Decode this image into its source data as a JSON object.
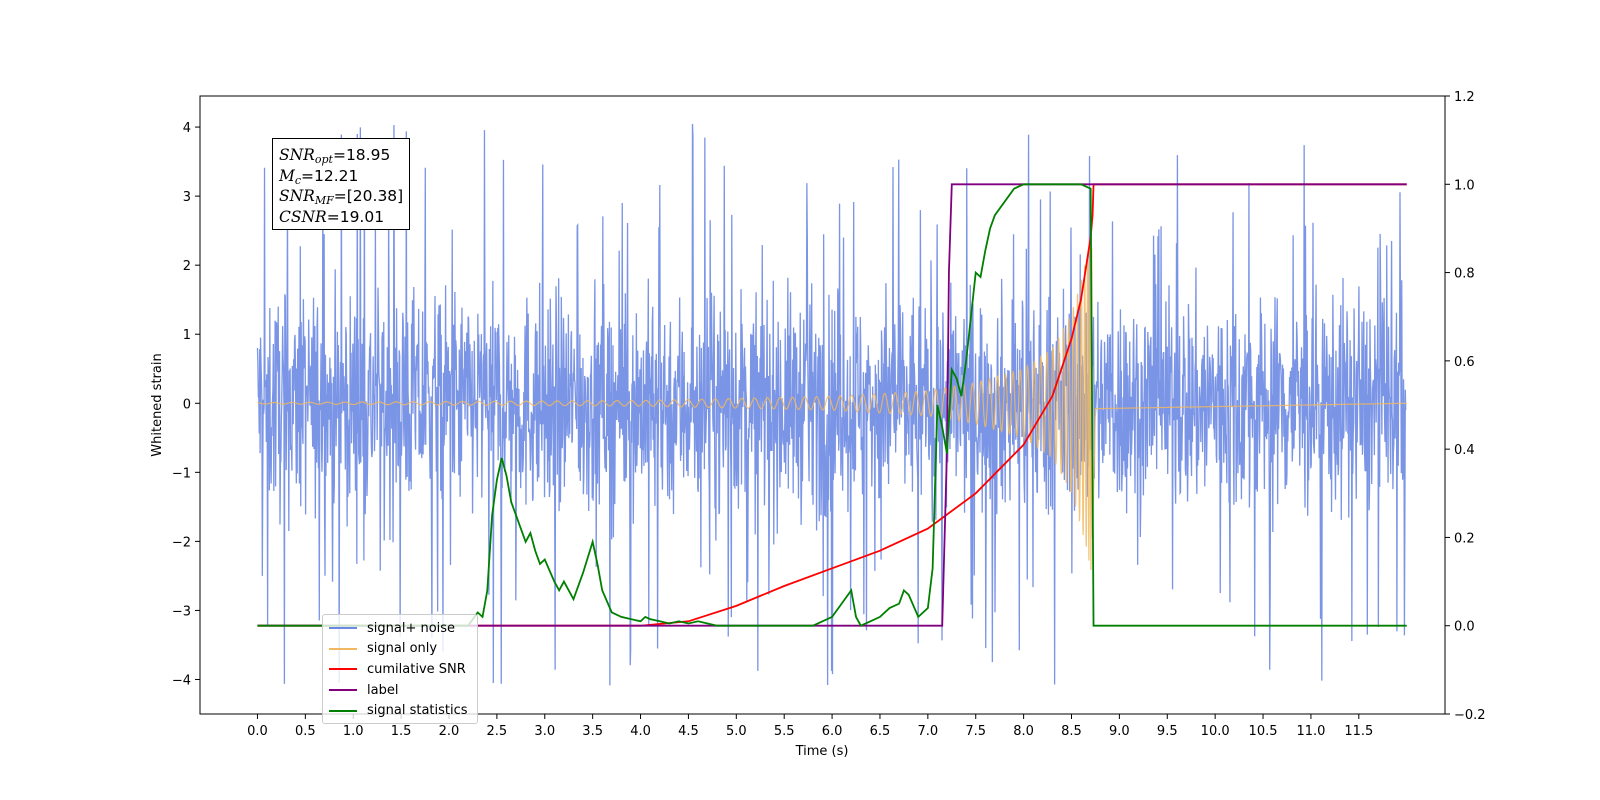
{
  "chart_data": {
    "type": "line",
    "xlabel": "Time (s)",
    "ylabel": "Whitened strain",
    "x_ticks": [
      "0.0",
      "0.5",
      "1.0",
      "1.5",
      "2.0",
      "2.5",
      "3.0",
      "3.5",
      "4.0",
      "4.5",
      "5.0",
      "5.5",
      "6.0",
      "6.5",
      "7.0",
      "7.5",
      "8.0",
      "8.5",
      "9.0",
      "9.5",
      "10.0",
      "10.5",
      "11.0",
      "11.5"
    ],
    "xlim": [
      -0.6,
      12.4
    ],
    "y_left_ticks": [
      "−4",
      "−3",
      "−2",
      "−1",
      "0",
      "1",
      "2",
      "3",
      "4"
    ],
    "ylim_left": [
      -4.5,
      4.45
    ],
    "y_right_ticks": [
      "−0.2",
      "0.0",
      "0.2",
      "0.4",
      "0.6",
      "0.8",
      "1.0",
      "1.2"
    ],
    "ylim_right": [
      -0.2,
      1.2
    ],
    "colors": {
      "noise": "#6b88e3",
      "signal": "#f0b860",
      "overlap": "#b89a7a",
      "snr": "#ff0000",
      "label": "#800080",
      "stat": "#008000"
    },
    "annotation": {
      "snr_opt_sym": "SNR",
      "snr_opt_sub": "opt",
      "snr_opt_val": "=18.95",
      "mc_sym": "M",
      "mc_sub": "c",
      "mc_val": "=12.21",
      "snr_mf_sym": "SNR",
      "snr_mf_sub": "MF",
      "snr_mf_val": "=[20.38]",
      "csnr_sym": "CSNR",
      "csnr_val": "=19.01"
    },
    "legend": [
      {
        "label": "signal+ noise",
        "color": "#6b88e3"
      },
      {
        "label": "signal only",
        "color": "#f0b860"
      },
      {
        "label": "cumilative SNR",
        "color": "#ff0000"
      },
      {
        "label": "label",
        "color": "#800080"
      },
      {
        "label": "signal statistics",
        "color": "#008000"
      }
    ],
    "series": [
      {
        "name": "signal+ noise",
        "axis": "left",
        "kind": "noise",
        "x_range": [
          0.0,
          11.99
        ],
        "noise_band": [
          -2.0,
          2.3
        ],
        "peak_range": [
          -4.1,
          4.05
        ]
      },
      {
        "name": "signal only",
        "axis": "left",
        "kind": "chirp",
        "x_range": [
          0.0,
          12.0
        ],
        "merger_time": 8.72,
        "envelope": [
          [
            0.0,
            0.01
          ],
          [
            4.0,
            0.04
          ],
          [
            6.0,
            0.1
          ],
          [
            7.0,
            0.18
          ],
          [
            7.5,
            0.3
          ],
          [
            8.0,
            0.5
          ],
          [
            8.3,
            0.8
          ],
          [
            8.5,
            1.3
          ],
          [
            8.6,
            1.8
          ],
          [
            8.68,
            2.3
          ],
          [
            8.72,
            2.5
          ],
          [
            8.75,
            0.1
          ],
          [
            12.0,
            0.0
          ]
        ]
      },
      {
        "name": "cumilative SNR",
        "axis": "right",
        "x": [
          0.0,
          4.0,
          4.5,
          5.0,
          5.5,
          6.0,
          6.5,
          7.0,
          7.5,
          8.0,
          8.3,
          8.5,
          8.6,
          8.7,
          8.72,
          8.73,
          12.0
        ],
        "y": [
          0.0,
          0.0,
          0.01,
          0.045,
          0.09,
          0.13,
          0.17,
          0.22,
          0.3,
          0.41,
          0.52,
          0.65,
          0.74,
          0.88,
          0.93,
          1.0,
          1.0
        ]
      },
      {
        "name": "label",
        "axis": "right",
        "x": [
          0.0,
          7.15,
          7.2,
          7.22,
          7.25,
          12.0
        ],
        "y": [
          0.0,
          0.0,
          0.4,
          0.8,
          1.0,
          1.0
        ]
      },
      {
        "name": "signal statistics",
        "axis": "right",
        "x": [
          0.0,
          2.2,
          2.3,
          2.35,
          2.4,
          2.45,
          2.5,
          2.55,
          2.6,
          2.65,
          2.7,
          2.8,
          2.85,
          2.9,
          2.95,
          3.0,
          3.1,
          3.15,
          3.2,
          3.3,
          3.4,
          3.5,
          3.55,
          3.6,
          3.7,
          3.8,
          3.9,
          4.0,
          4.05,
          4.1,
          4.2,
          4.3,
          4.4,
          4.5,
          4.6,
          4.7,
          4.8,
          4.9,
          5.8,
          5.9,
          6.0,
          6.1,
          6.2,
          6.25,
          6.3,
          6.4,
          6.5,
          6.6,
          6.7,
          6.75,
          6.8,
          6.9,
          7.0,
          7.05,
          7.1,
          7.15,
          7.2,
          7.25,
          7.3,
          7.35,
          7.4,
          7.5,
          7.55,
          7.6,
          7.65,
          7.7,
          7.8,
          7.9,
          8.0,
          8.4,
          8.6,
          8.7,
          8.73,
          12.0
        ],
        "y": [
          0.0,
          0.0,
          0.03,
          0.02,
          0.08,
          0.25,
          0.33,
          0.38,
          0.34,
          0.28,
          0.25,
          0.19,
          0.21,
          0.17,
          0.14,
          0.15,
          0.1,
          0.08,
          0.1,
          0.06,
          0.12,
          0.19,
          0.14,
          0.08,
          0.03,
          0.02,
          0.015,
          0.01,
          0.02,
          0.015,
          0.01,
          0.005,
          0.01,
          0.005,
          0.01,
          0.005,
          0.0,
          0.0,
          0.0,
          0.01,
          0.02,
          0.05,
          0.08,
          0.02,
          0.0,
          0.01,
          0.02,
          0.04,
          0.05,
          0.08,
          0.07,
          0.02,
          0.04,
          0.13,
          0.5,
          0.45,
          0.39,
          0.58,
          0.56,
          0.52,
          0.6,
          0.8,
          0.79,
          0.85,
          0.9,
          0.93,
          0.96,
          0.99,
          1.0,
          1.0,
          1.0,
          0.99,
          0.0,
          0.0
        ]
      }
    ]
  }
}
